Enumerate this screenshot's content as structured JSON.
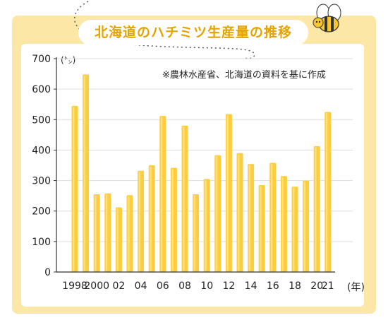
{
  "chart_data": {
    "type": "bar",
    "title": "北海道のハチミツ生産量の推移",
    "note": "※農林水産省、北海道の資料を基に作成",
    "ylabel": "(㌧)",
    "xunit": "(年)",
    "ylim": [
      0,
      700
    ],
    "yticks": [
      0,
      100,
      200,
      300,
      400,
      500,
      600,
      700
    ],
    "grid": true,
    "categories": [
      "1998",
      "1999",
      "2000",
      "2001",
      "2002",
      "2003",
      "2004",
      "2005",
      "2006",
      "2007",
      "2008",
      "2009",
      "2010",
      "2011",
      "2012",
      "2013",
      "2014",
      "2015",
      "2016",
      "2017",
      "2018",
      "2019",
      "2020",
      "2021"
    ],
    "tick_labels": [
      "1998",
      "2000",
      "02",
      "04",
      "06",
      "08",
      "10",
      "12",
      "14",
      "16",
      "18",
      "20",
      "21"
    ],
    "values": [
      545,
      648,
      255,
      258,
      212,
      252,
      332,
      350,
      512,
      342,
      480,
      255,
      305,
      383,
      518,
      390,
      354,
      285,
      358,
      315,
      280,
      300,
      413,
      525
    ],
    "colors": {
      "bar": "#fccd3e",
      "bar_highlight": "#fee488",
      "panel": "#fde7a6",
      "title": "#e4a300"
    }
  }
}
